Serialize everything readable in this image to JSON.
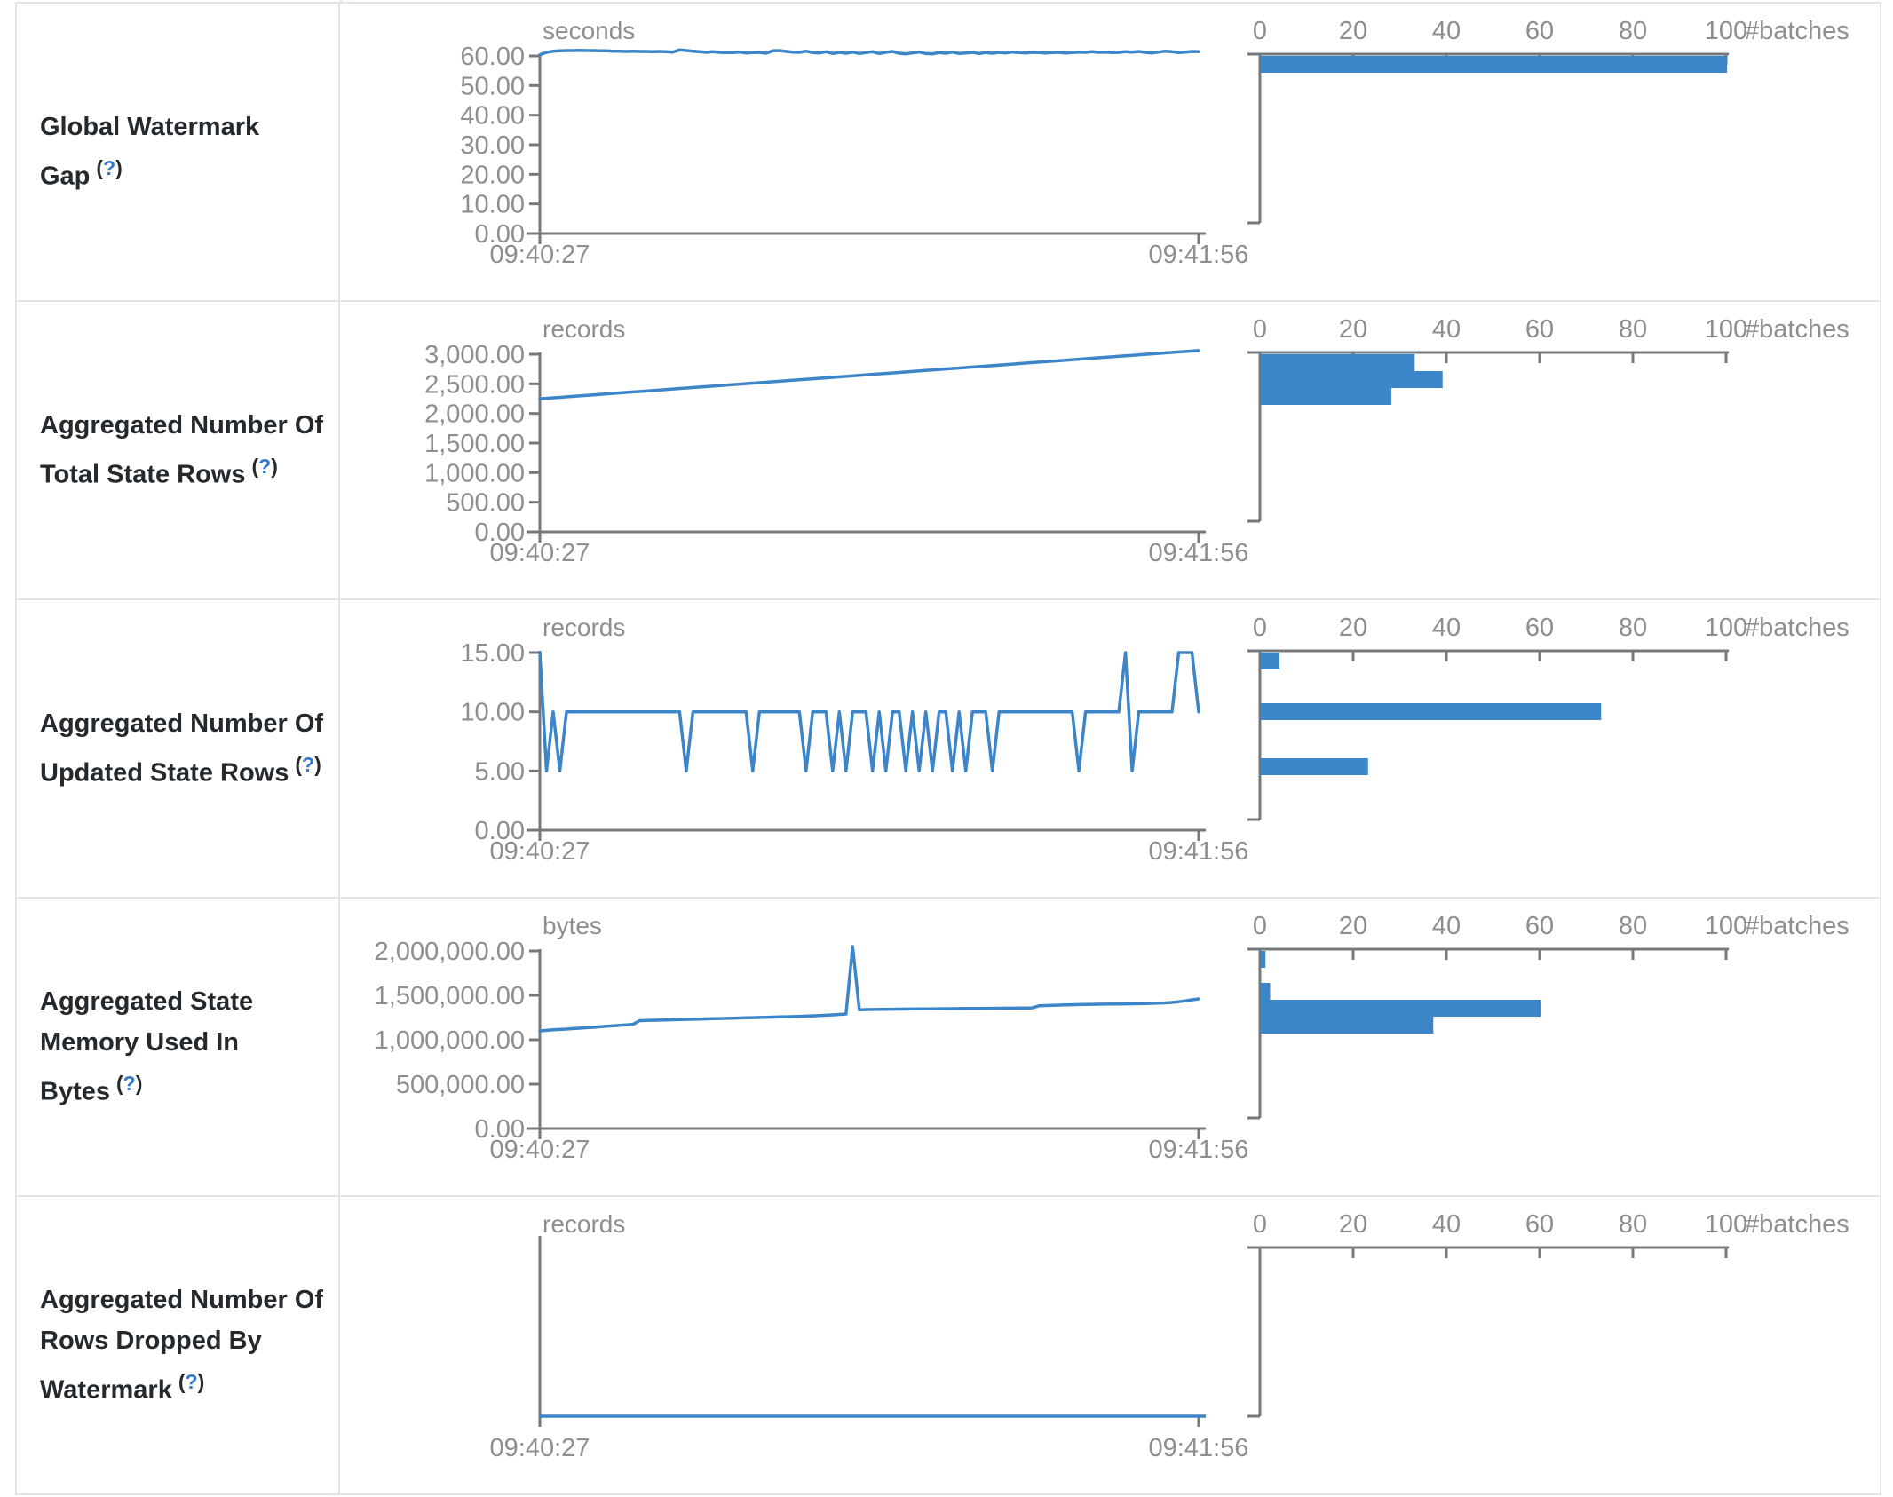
{
  "ui": {
    "help_open": "(",
    "help_q": "?",
    "help_close": ")"
  },
  "theme": {
    "accent_blue": "#3c85c8",
    "axis_gray": "#77787c",
    "tick_text_gray": "#8d8e92",
    "label_dark": "#24292e",
    "help_blue": "#3579c8",
    "border_gray": "#e2e4e9"
  },
  "time_axis": {
    "start": "09:40:27",
    "end": "09:41:56"
  },
  "batches_axis": {
    "ticks": [
      "0",
      "20",
      "40",
      "60",
      "80",
      "100"
    ],
    "label": "#batches"
  },
  "rows": [
    {
      "label": "Global Watermark Gap",
      "chart_data": {
        "type": "line",
        "unit": "seconds",
        "y_tick_labels": [
          "60.00",
          "50.00",
          "40.00",
          "30.00",
          "20.00",
          "10.00",
          "0.00"
        ],
        "ylim": [
          0,
          60
        ],
        "x_start": "09:40:27",
        "x_end": "09:41:56",
        "timeline_values": [
          60.4,
          61.2,
          61.6,
          61.7,
          61.8,
          61.8,
          61.9,
          61.8,
          61.8,
          61.7,
          61.7,
          61.6,
          61.6,
          61.5,
          61.6,
          61.5,
          61.5,
          61.4,
          61.5,
          61.4,
          61.3,
          62.0,
          61.8,
          61.6,
          61.4,
          61.2,
          61.4,
          61.2,
          61.1,
          61.1,
          61.3,
          61.0,
          61.1,
          61.2,
          60.9,
          61.7,
          61.8,
          61.5,
          61.3,
          61.2,
          61.6,
          61.1,
          61.0,
          61.4,
          60.8,
          61.2,
          60.9,
          61.3,
          60.8,
          61.1,
          61.4,
          60.8,
          61.2,
          61.5,
          60.9,
          60.7,
          61.0,
          61.3,
          60.8,
          60.7,
          61.1,
          60.9,
          61.3,
          60.8,
          61.0,
          61.2,
          60.8,
          61.1,
          60.9,
          61.2,
          61.0,
          61.3,
          61.1,
          61.0,
          61.2,
          61.1,
          61.0,
          61.1,
          61.2,
          61.0,
          61.1,
          61.3,
          61.2,
          61.4,
          61.2,
          61.3,
          61.1,
          61.2,
          61.4,
          61.3,
          61.5,
          61.2,
          61.0,
          61.3,
          61.6,
          61.4,
          61.1,
          61.3,
          61.5,
          61.4
        ],
        "histogram": {
          "axis_label": "#batches",
          "axis_ticks": [
            "0",
            "20",
            "40",
            "60",
            "80",
            "100"
          ],
          "counts": [
            100
          ]
        }
      }
    },
    {
      "label": "Aggregated Number Of Total State Rows",
      "chart_data": {
        "type": "line",
        "unit": "records",
        "y_tick_labels": [
          "3,000.00",
          "2,500.00",
          "2,000.00",
          "1,500.00",
          "1,000.00",
          "500.00",
          "0.00"
        ],
        "ylim": [
          0,
          3000
        ],
        "x_start": "09:40:27",
        "x_end": "09:41:56",
        "timeline_values": [
          2248,
          2282,
          2316,
          2350,
          2384,
          2418,
          2452,
          2486,
          2520,
          2554,
          2588,
          2622,
          2656,
          2690,
          2724,
          2758,
          2792,
          2826,
          2860,
          2894,
          2928,
          2962,
          2996,
          3030,
          3062
        ],
        "histogram": {
          "axis_label": "#batches",
          "axis_ticks": [
            "0",
            "20",
            "40",
            "60",
            "80",
            "100"
          ],
          "counts": [
            33,
            39,
            28
          ]
        }
      }
    },
    {
      "label": "Aggregated Number Of Updated State Rows",
      "chart_data": {
        "type": "line",
        "unit": "records",
        "y_tick_labels": [
          "15.00",
          "10.00",
          "5.00",
          "0.00"
        ],
        "ylim": [
          0,
          15
        ],
        "x_start": "09:40:27",
        "x_end": "09:41:56",
        "timeline_values": [
          15,
          5,
          10,
          5,
          10,
          10,
          10,
          10,
          10,
          10,
          10,
          10,
          10,
          10,
          10,
          10,
          10,
          10,
          10,
          10,
          10,
          10,
          5,
          10,
          10,
          10,
          10,
          10,
          10,
          10,
          10,
          10,
          5,
          10,
          10,
          10,
          10,
          10,
          10,
          10,
          5,
          10,
          10,
          10,
          5,
          10,
          5,
          10,
          10,
          10,
          5,
          10,
          5,
          10,
          10,
          5,
          10,
          5,
          10,
          5,
          10,
          10,
          5,
          10,
          5,
          10,
          10,
          10,
          5,
          10,
          10,
          10,
          10,
          10,
          10,
          10,
          10,
          10,
          10,
          10,
          10,
          5,
          10,
          10,
          10,
          10,
          10,
          10,
          15,
          5,
          10,
          10,
          10,
          10,
          10,
          10,
          15,
          15,
          15,
          10
        ],
        "histogram": {
          "axis_label": "#batches",
          "axis_ticks": [
            "0",
            "20",
            "40",
            "60",
            "80",
            "100"
          ],
          "counts": [
            4,
            73,
            23
          ]
        }
      }
    },
    {
      "label": "Aggregated State Memory Used In Bytes",
      "chart_data": {
        "type": "line",
        "unit": "bytes",
        "y_tick_labels": [
          "2,000,000.00",
          "1,500,000.00",
          "1,000,000.00",
          "500,000.00",
          "0.00"
        ],
        "ylim": [
          0,
          2000000
        ],
        "x_start": "09:40:27",
        "x_end": "09:41:56",
        "timeline_values": [
          1100000,
          1106000,
          1112000,
          1116000,
          1120000,
          1126000,
          1130000,
          1136000,
          1140000,
          1146000,
          1152000,
          1158000,
          1163000,
          1168000,
          1174000,
          1215000,
          1217000,
          1219000,
          1221000,
          1223000,
          1225000,
          1227000,
          1229000,
          1231000,
          1233000,
          1235000,
          1237000,
          1239000,
          1241000,
          1243000,
          1245000,
          1247000,
          1249000,
          1251000,
          1253000,
          1255000,
          1257000,
          1259000,
          1261000,
          1263000,
          1266000,
          1269000,
          1272000,
          1276000,
          1280000,
          1285000,
          1290000,
          2050000,
          1338000,
          1340000,
          1341000,
          1342000,
          1343000,
          1344000,
          1345000,
          1346000,
          1346000,
          1347000,
          1348000,
          1348000,
          1349000,
          1350000,
          1350000,
          1351000,
          1352000,
          1352000,
          1353000,
          1354000,
          1354000,
          1355000,
          1356000,
          1356000,
          1357000,
          1358000,
          1359000,
          1382000,
          1385000,
          1388000,
          1390000,
          1392000,
          1394000,
          1396000,
          1398000,
          1399000,
          1400000,
          1401000,
          1402000,
          1403000,
          1404000,
          1405000,
          1406000,
          1408000,
          1410000,
          1412000,
          1415000,
          1420000,
          1428000,
          1438000,
          1450000,
          1460000
        ],
        "histogram": {
          "axis_label": "#batches",
          "axis_ticks": [
            "0",
            "20",
            "40",
            "60",
            "80",
            "100"
          ],
          "counts": [
            1,
            2,
            60,
            37
          ]
        }
      }
    },
    {
      "label": "Aggregated Number Of Rows Dropped By Watermark",
      "chart_data": {
        "type": "line",
        "unit": "records",
        "y_tick_labels": [],
        "ylim": [
          0,
          0
        ],
        "x_start": "09:40:27",
        "x_end": "09:41:56",
        "timeline_values": [
          0,
          0
        ],
        "histogram": {
          "axis_label": "#batches",
          "axis_ticks": [
            "0",
            "20",
            "40",
            "60",
            "80",
            "100"
          ],
          "counts": []
        }
      }
    }
  ]
}
